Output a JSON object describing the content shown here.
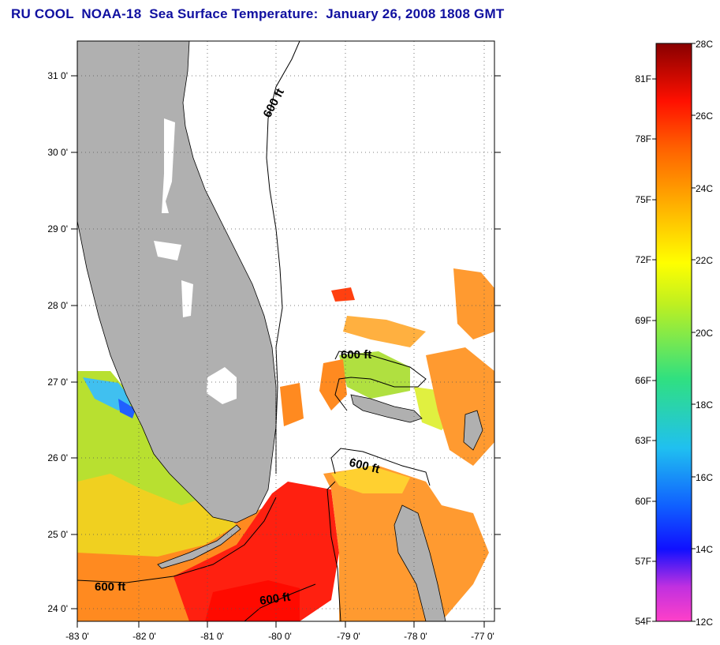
{
  "title": "RU COOL  NOAA-18  Sea Surface Temperature:  January 26, 2008 1808 GMT",
  "map": {
    "lat_labels": [
      "31 0'",
      "30 0'",
      "29 0'",
      "28 0'",
      "27 0'",
      "26 0'",
      "25 0'",
      "24 0'"
    ],
    "lon_labels": [
      "-83 0'",
      "-82 0'",
      "-81 0'",
      "-80 0'",
      "-79 0'",
      "-78 0'",
      "-77 0'"
    ],
    "contour_labels": [
      "600 ft",
      "600 ft",
      "600 ft",
      "600 ft",
      "600 ft"
    ],
    "land_color": "#b0b0b0",
    "cloud_color": "#ffffff"
  },
  "colorbar": {
    "fahrenheit_labels": [
      "81F",
      "78F",
      "75F",
      "72F",
      "69F",
      "66F",
      "63F",
      "60F",
      "57F",
      "54F"
    ],
    "celsius_labels": [
      "28C",
      "26C",
      "24C",
      "22C",
      "20C",
      "18C",
      "16C",
      "14C",
      "12C"
    ],
    "range_c": [
      12,
      28
    ]
  }
}
